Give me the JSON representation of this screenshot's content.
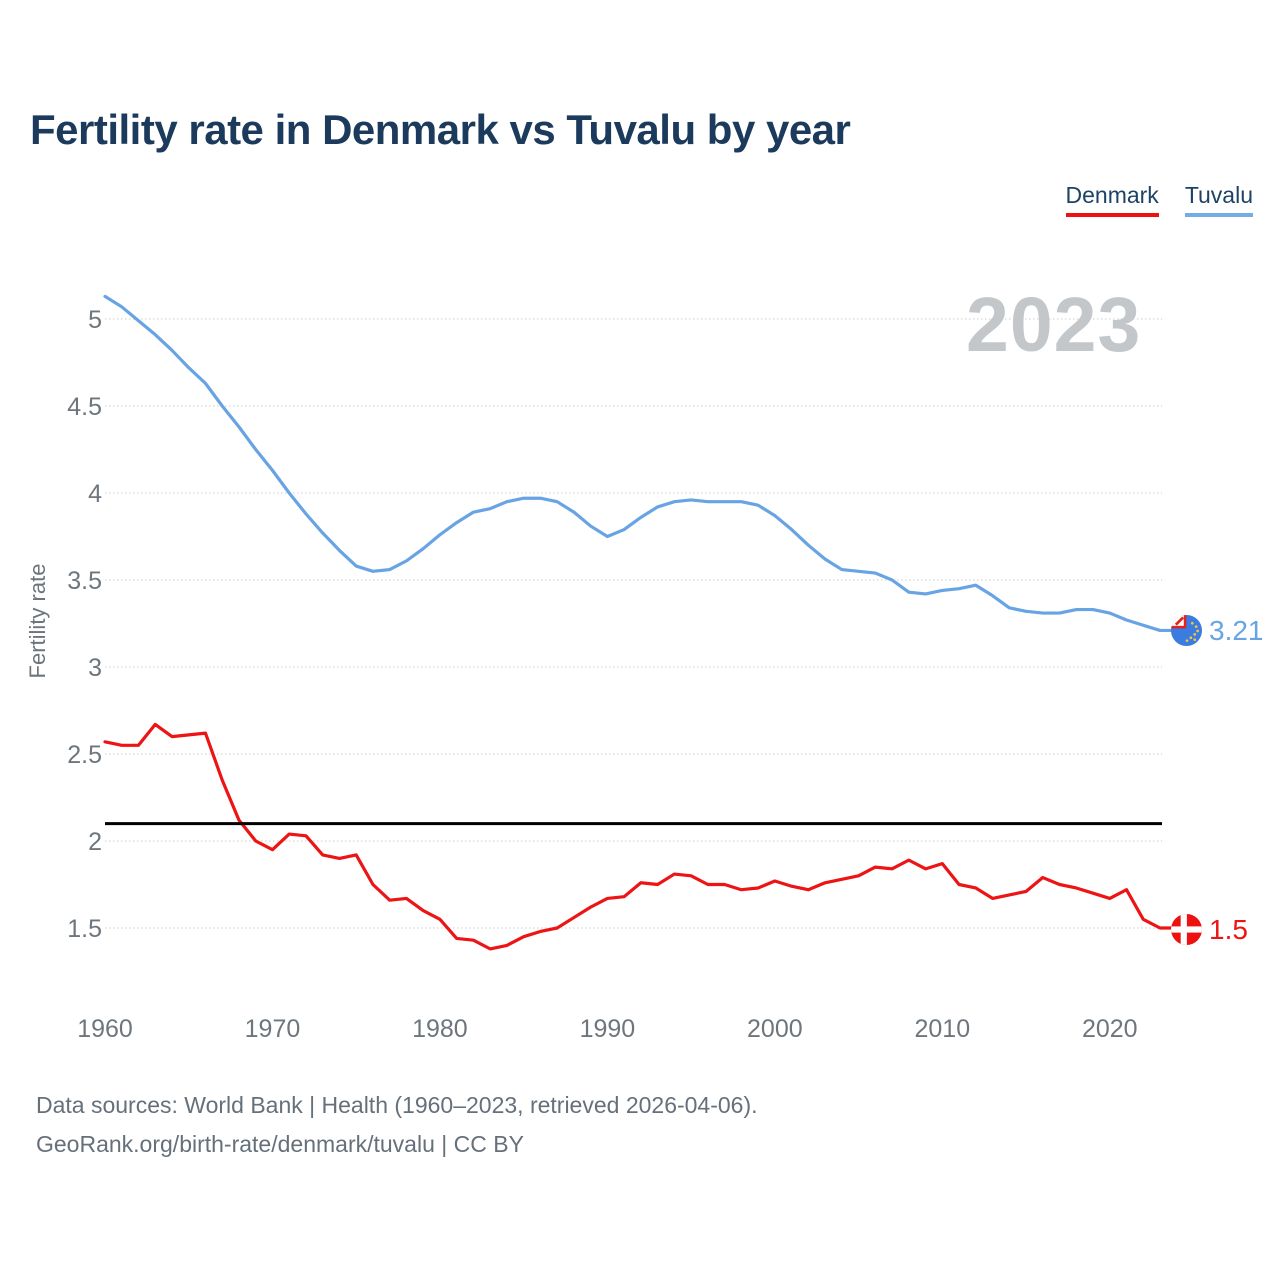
{
  "title": "Fertility rate in Denmark vs Tuvalu by year",
  "watermark": "2023",
  "legend": [
    {
      "label": "Denmark",
      "color": "#ee1111"
    },
    {
      "label": "Tuvalu",
      "color": "#74ade6"
    }
  ],
  "footer": {
    "line1": "Data sources: World Bank | Health (1960–2023, retrieved 2026-04-06).",
    "line2": "GeoRank.org/birth-rate/denmark/tuvalu | CC BY"
  },
  "chart_data": {
    "type": "line",
    "title": "Fertility rate in Denmark vs Tuvalu by year",
    "xlabel": "",
    "ylabel": "Fertility rate",
    "grid": true,
    "legend_position": "top-right",
    "xlim": [
      1960,
      2023
    ],
    "ylim": [
      1.3,
      5.2
    ],
    "x_ticks": [
      1960,
      1970,
      1980,
      1990,
      2000,
      2010,
      2020
    ],
    "y_ticks": [
      1.5,
      2,
      2.5,
      3,
      3.5,
      4,
      4.5,
      5
    ],
    "reference_line": {
      "value": 2.1,
      "color": "#000000"
    },
    "x": [
      1960,
      1961,
      1962,
      1963,
      1964,
      1965,
      1966,
      1967,
      1968,
      1969,
      1970,
      1971,
      1972,
      1973,
      1974,
      1975,
      1976,
      1977,
      1978,
      1979,
      1980,
      1981,
      1982,
      1983,
      1984,
      1985,
      1986,
      1987,
      1988,
      1989,
      1990,
      1991,
      1992,
      1993,
      1994,
      1995,
      1996,
      1997,
      1998,
      1999,
      2000,
      2001,
      2002,
      2003,
      2004,
      2005,
      2006,
      2007,
      2008,
      2009,
      2010,
      2011,
      2012,
      2013,
      2014,
      2015,
      2016,
      2017,
      2018,
      2019,
      2020,
      2021,
      2022,
      2023
    ],
    "series": [
      {
        "name": "Tuvalu",
        "color": "#68a4e3",
        "end_label": "3.21",
        "values": [
          5.13,
          5.07,
          4.99,
          4.91,
          4.82,
          4.72,
          4.63,
          4.5,
          4.38,
          4.25,
          4.13,
          4.0,
          3.88,
          3.77,
          3.67,
          3.58,
          3.55,
          3.56,
          3.61,
          3.68,
          3.76,
          3.83,
          3.89,
          3.91,
          3.95,
          3.97,
          3.97,
          3.95,
          3.89,
          3.81,
          3.75,
          3.79,
          3.86,
          3.92,
          3.95,
          3.96,
          3.95,
          3.95,
          3.95,
          3.93,
          3.87,
          3.79,
          3.7,
          3.62,
          3.56,
          3.55,
          3.54,
          3.5,
          3.43,
          3.42,
          3.44,
          3.45,
          3.47,
          3.41,
          3.34,
          3.32,
          3.31,
          3.31,
          3.33,
          3.33,
          3.31,
          3.27,
          3.24,
          3.21
        ]
      },
      {
        "name": "Denmark",
        "color": "#ec1414",
        "end_label": "1.5",
        "values": [
          2.57,
          2.55,
          2.55,
          2.67,
          2.6,
          2.61,
          2.62,
          2.35,
          2.12,
          2.0,
          1.95,
          2.04,
          2.03,
          1.92,
          1.9,
          1.92,
          1.75,
          1.66,
          1.67,
          1.6,
          1.55,
          1.44,
          1.43,
          1.38,
          1.4,
          1.45,
          1.48,
          1.5,
          1.56,
          1.62,
          1.67,
          1.68,
          1.76,
          1.75,
          1.81,
          1.8,
          1.75,
          1.75,
          1.72,
          1.73,
          1.77,
          1.74,
          1.72,
          1.76,
          1.78,
          1.8,
          1.85,
          1.84,
          1.89,
          1.84,
          1.87,
          1.75,
          1.73,
          1.67,
          1.69,
          1.71,
          1.79,
          1.75,
          1.73,
          1.7,
          1.67,
          1.72,
          1.55,
          1.5
        ]
      }
    ]
  }
}
